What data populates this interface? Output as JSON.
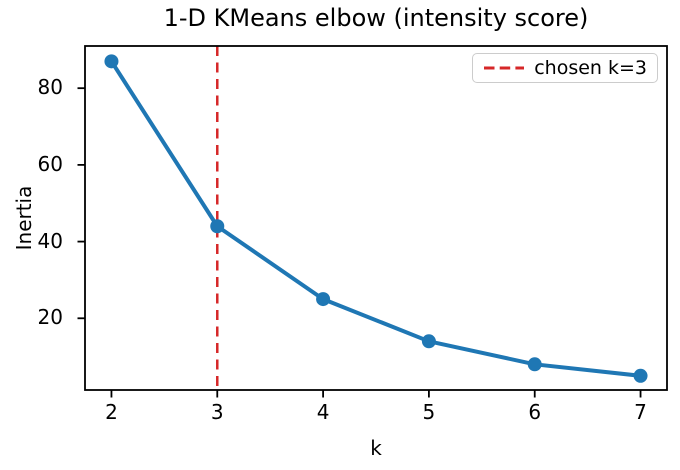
{
  "chart_data": {
    "type": "line",
    "title": "1-D KMeans elbow (intensity score)",
    "xlabel": "k",
    "ylabel": "Inertia",
    "x": [
      2,
      3,
      4,
      5,
      6,
      7
    ],
    "y": [
      87,
      44,
      25,
      14,
      8,
      5
    ],
    "series_name": "Inertia",
    "series_color": "#1f77b4",
    "marker": "circle",
    "x_ticks": [
      2,
      3,
      4,
      5,
      6,
      7
    ],
    "y_ticks": [
      20,
      40,
      60,
      80
    ],
    "xlim": [
      1.75,
      7.25
    ],
    "ylim": [
      1.3,
      91.0
    ],
    "grid": false,
    "vline": {
      "x": 3,
      "color": "#d62728",
      "style": "dashed",
      "label": "chosen k=3"
    },
    "legend": {
      "position": "upper right",
      "entries": [
        "chosen k=3"
      ]
    },
    "colors": {
      "axes": "#000000",
      "text": "#000000",
      "legend_border": "#cccccc",
      "background": "#ffffff"
    }
  }
}
